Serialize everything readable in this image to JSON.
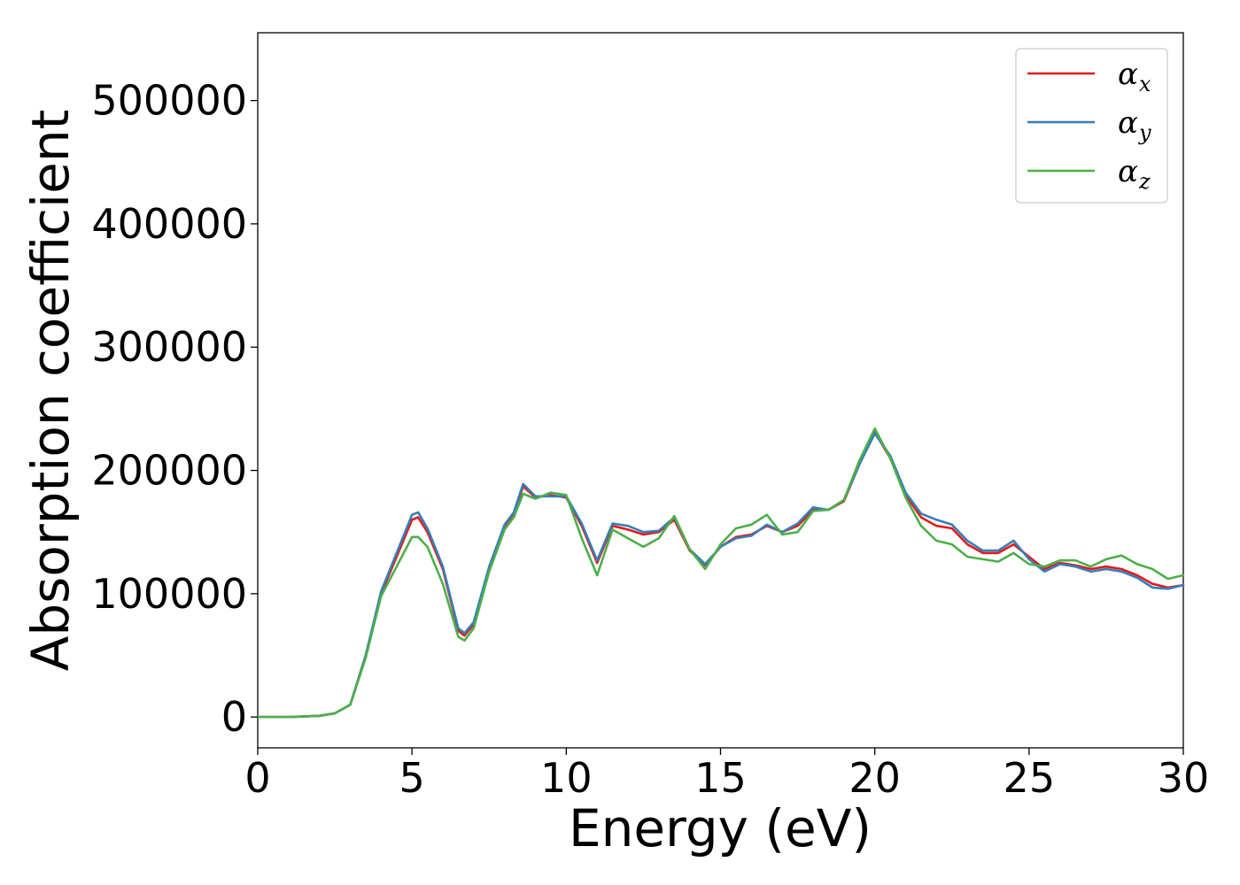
{
  "chart_data": {
    "type": "line",
    "xlabel": "Energy (eV)",
    "ylabel": "Absorption coefficient",
    "xlim": [
      0,
      30
    ],
    "ylim": [
      -25000,
      555000
    ],
    "xticks": [
      0,
      5,
      10,
      15,
      20,
      25,
      30
    ],
    "yticks": [
      0,
      100000,
      200000,
      300000,
      400000,
      500000
    ],
    "grid": false,
    "legend_position": "top-right",
    "x": [
      0,
      1,
      2,
      2.5,
      3,
      3.5,
      4,
      4.5,
      5,
      5.2,
      5.5,
      6,
      6.5,
      6.7,
      7,
      7.5,
      8,
      8.3,
      8.6,
      9,
      9.5,
      10,
      10.5,
      11,
      11.5,
      12,
      12.5,
      13,
      13.5,
      14,
      14.5,
      15,
      15.5,
      16,
      16.5,
      17,
      17.5,
      18,
      18.5,
      19,
      19.5,
      20,
      20.5,
      21,
      21.5,
      22,
      22.5,
      23,
      23.5,
      24,
      24.5,
      25,
      25.5,
      26,
      26.5,
      27,
      27.5,
      28,
      28.5,
      29,
      29.5,
      30
    ],
    "series": [
      {
        "name": "α",
        "subscript": "x",
        "color": "#e41a1c",
        "values": [
          0,
          0,
          1000,
          3000,
          10000,
          50000,
          100000,
          130000,
          160000,
          162000,
          150000,
          120000,
          70000,
          66000,
          75000,
          120000,
          155000,
          165000,
          187000,
          178000,
          180000,
          178000,
          155000,
          125000,
          155000,
          152000,
          148000,
          150000,
          160000,
          135000,
          123000,
          138000,
          146000,
          148000,
          155000,
          150000,
          155000,
          168000,
          168000,
          175000,
          205000,
          231000,
          210000,
          180000,
          162000,
          155000,
          153000,
          140000,
          133000,
          133000,
          140000,
          130000,
          120000,
          125000,
          123000,
          120000,
          122000,
          120000,
          115000,
          108000,
          105000,
          107000
        ]
      },
      {
        "name": "α",
        "subscript": "y",
        "color": "#377eb8",
        "values": [
          0,
          0,
          1000,
          3000,
          10000,
          50000,
          102000,
          133000,
          164000,
          166000,
          153000,
          122000,
          72000,
          68000,
          77000,
          122000,
          156000,
          166000,
          189000,
          179000,
          179000,
          179000,
          157000,
          127000,
          157000,
          155000,
          150000,
          151000,
          162000,
          136000,
          124000,
          138000,
          145000,
          147000,
          156000,
          150000,
          157000,
          170000,
          168000,
          176000,
          205000,
          230000,
          212000,
          182000,
          165000,
          160000,
          156000,
          143000,
          135000,
          135000,
          143000,
          128000,
          118000,
          124000,
          122000,
          118000,
          120000,
          118000,
          113000,
          105000,
          104000,
          107000
        ]
      },
      {
        "name": "α",
        "subscript": "z",
        "color": "#4daf4a",
        "values": [
          0,
          0,
          1000,
          3000,
          10000,
          48000,
          98000,
          122000,
          146000,
          146000,
          138000,
          108000,
          65000,
          62000,
          72000,
          118000,
          152000,
          162000,
          181000,
          177000,
          182000,
          180000,
          145000,
          115000,
          152000,
          145000,
          138000,
          145000,
          163000,
          136000,
          120000,
          140000,
          153000,
          156000,
          164000,
          148000,
          150000,
          167000,
          168000,
          176000,
          208000,
          234000,
          210000,
          178000,
          155000,
          143000,
          140000,
          130000,
          128000,
          126000,
          133000,
          124000,
          122000,
          127000,
          127000,
          122000,
          128000,
          131000,
          124000,
          120000,
          112000,
          115000
        ]
      }
    ]
  }
}
